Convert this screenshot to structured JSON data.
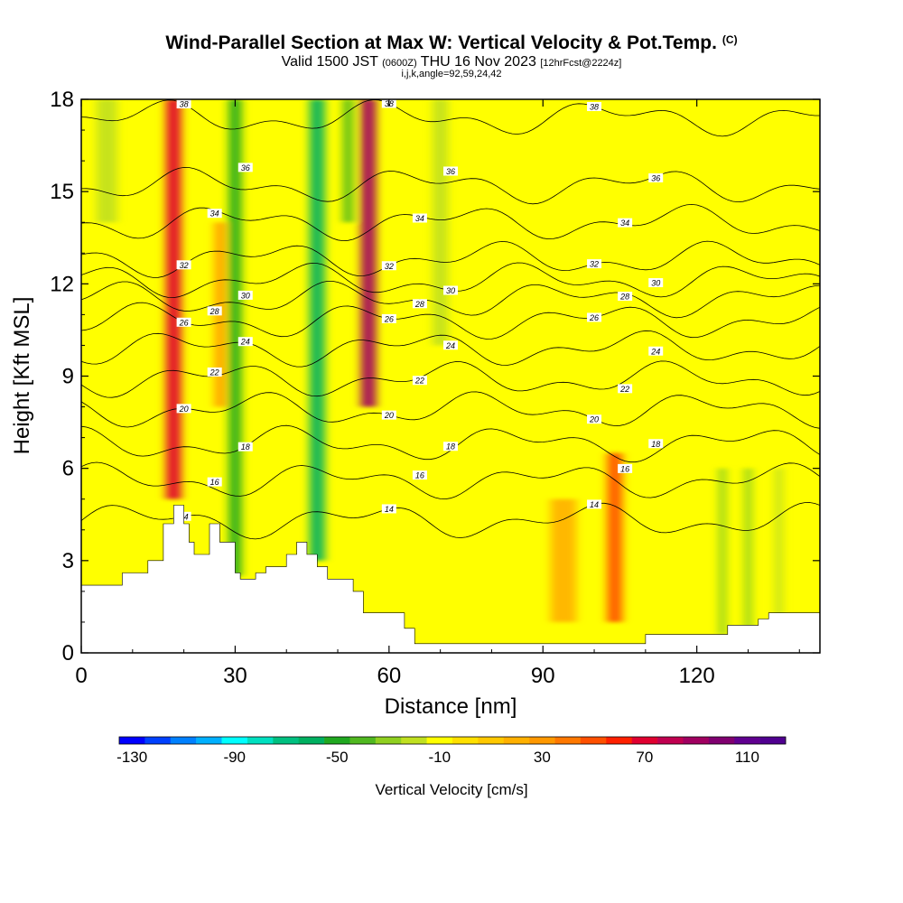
{
  "header": {
    "title": "Wind-Parallel Section at Max W: Vertical Velocity & Pot.Temp.",
    "copyright": "(C)",
    "valid_prefix": "Valid 1500 JST",
    "valid_utc": "(0600Z)",
    "valid_date": "THU 16 Nov 2023",
    "forecast": "[12hrFcst@2224z]",
    "indices": "i,j,k,angle=92,59,24,42"
  },
  "chart_data": {
    "type": "heatmap",
    "xlabel": "Distance [nm]",
    "ylabel": "Height [Kft MSL]",
    "xlim": [
      0,
      144
    ],
    "ylim": [
      0,
      18
    ],
    "xticks": [
      0,
      30,
      60,
      90,
      120
    ],
    "yticks": [
      0,
      3,
      6,
      9,
      12,
      15,
      18
    ],
    "colorbar": {
      "label": "Vertical Velocity [cm/s]",
      "tick_labels": [
        "-130",
        "-90",
        "-50",
        "-10",
        "30",
        "70",
        "110"
      ],
      "tick_values": [
        -130,
        -90,
        -50,
        -10,
        30,
        70,
        110
      ],
      "min": -130,
      "max": 130,
      "step": 10,
      "colors": [
        "#0000ff",
        "#0040ff",
        "#0080ff",
        "#00b0ff",
        "#00ffff",
        "#00e0c0",
        "#00c080",
        "#00b060",
        "#20a820",
        "#50b820",
        "#90d020",
        "#c0e020",
        "#ffff00",
        "#ffe000",
        "#ffc800",
        "#ffb000",
        "#ff9800",
        "#ff7800",
        "#ff5000",
        "#ff2000",
        "#e00030",
        "#c00050",
        "#a00060",
        "#800070",
        "#600090",
        "#500090"
      ]
    },
    "background_color": "#ffff00",
    "terrain_kft": [
      [
        0,
        2.2
      ],
      [
        8,
        2.2
      ],
      [
        8,
        2.6
      ],
      [
        13,
        2.6
      ],
      [
        13,
        3.0
      ],
      [
        16,
        3.0
      ],
      [
        16,
        4.2
      ],
      [
        18,
        4.2
      ],
      [
        18,
        4.8
      ],
      [
        20,
        4.8
      ],
      [
        20,
        4.2
      ],
      [
        21,
        4.2
      ],
      [
        21,
        3.6
      ],
      [
        22,
        3.6
      ],
      [
        22,
        3.2
      ],
      [
        25,
        3.2
      ],
      [
        25,
        4.2
      ],
      [
        27,
        4.2
      ],
      [
        27,
        3.6
      ],
      [
        30,
        3.6
      ],
      [
        30,
        2.6
      ],
      [
        31,
        2.6
      ],
      [
        31,
        2.4
      ],
      [
        34,
        2.4
      ],
      [
        34,
        2.6
      ],
      [
        36,
        2.6
      ],
      [
        36,
        2.8
      ],
      [
        40,
        2.8
      ],
      [
        40,
        3.2
      ],
      [
        42,
        3.2
      ],
      [
        42,
        3.6
      ],
      [
        44,
        3.6
      ],
      [
        44,
        3.2
      ],
      [
        46,
        3.2
      ],
      [
        46,
        2.8
      ],
      [
        48,
        2.8
      ],
      [
        48,
        2.4
      ],
      [
        53,
        2.4
      ],
      [
        53,
        2.0
      ],
      [
        55,
        2.0
      ],
      [
        55,
        1.3
      ],
      [
        63,
        1.3
      ],
      [
        63,
        0.8
      ],
      [
        65,
        0.8
      ],
      [
        65,
        0.3
      ],
      [
        110,
        0.3
      ],
      [
        110,
        0.6
      ],
      [
        126,
        0.6
      ],
      [
        126,
        0.9
      ],
      [
        132,
        0.9
      ],
      [
        132,
        1.1
      ],
      [
        134,
        1.1
      ],
      [
        134,
        1.3
      ],
      [
        144,
        1.3
      ]
    ],
    "vertical_velocity_features": [
      {
        "x": 18,
        "y0": 5,
        "y1": 18,
        "width": 3,
        "w": 70
      },
      {
        "x": 30,
        "y0": 2.5,
        "y1": 18,
        "width": 2.5,
        "w": -50
      },
      {
        "x": 46,
        "y0": 3,
        "y1": 18,
        "width": 3,
        "w": -60
      },
      {
        "x": 56,
        "y0": 8,
        "y1": 18,
        "width": 3,
        "w": 90
      },
      {
        "x": 52,
        "y0": 14,
        "y1": 18,
        "width": 2,
        "w": -40
      },
      {
        "x": 27,
        "y0": 8,
        "y1": 14,
        "width": 2,
        "w": 30
      },
      {
        "x": 104,
        "y0": 1,
        "y1": 6.5,
        "width": 3,
        "w": 50
      },
      {
        "x": 94,
        "y0": 1,
        "y1": 5,
        "width": 5,
        "w": 20
      },
      {
        "x": 125,
        "y0": 0.6,
        "y1": 6,
        "width": 1.5,
        "w": -30
      },
      {
        "x": 130,
        "y0": 0.8,
        "y1": 6,
        "width": 1.5,
        "w": -30
      },
      {
        "x": 136,
        "y0": 1,
        "y1": 6,
        "width": 1.5,
        "w": -20
      },
      {
        "x": 5,
        "y0": 14,
        "y1": 18,
        "width": 4,
        "w": -15
      },
      {
        "x": 70,
        "y0": 10,
        "y1": 18,
        "width": 3,
        "w": -15
      }
    ],
    "theta_contours": [
      {
        "label": "14",
        "y": 4.3
      },
      {
        "label": "16",
        "y": 5.6
      },
      {
        "label": "18",
        "y": 6.8
      },
      {
        "label": "20",
        "y": 7.9
      },
      {
        "label": "22",
        "y": 8.9
      },
      {
        "label": "24",
        "y": 9.9
      },
      {
        "label": "26",
        "y": 10.8
      },
      {
        "label": "28",
        "y": 11.5
      },
      {
        "label": "30",
        "y": 12.1
      },
      {
        "label": "32",
        "y": 12.8
      },
      {
        "label": "34",
        "y": 14.0
      },
      {
        "label": "36",
        "y": 15.2
      },
      {
        "label": "38",
        "y": 17.4
      }
    ]
  }
}
